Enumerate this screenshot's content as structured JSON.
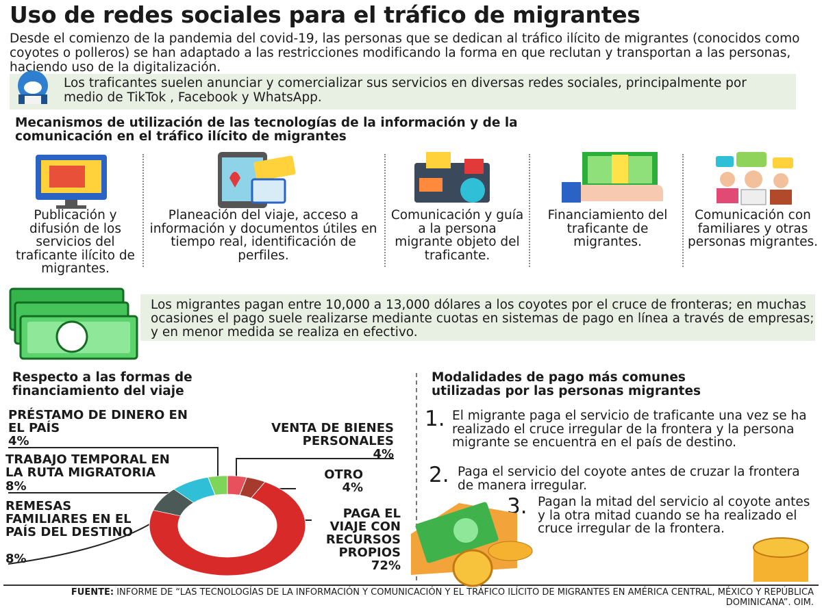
{
  "header": {
    "title": "Uso de redes sociales para el tráfico de migrantes"
  },
  "intro": "Desde el comienzo de la pandemia del covid-19, las personas que se dedican al tráfico ilícito de migrantes (conocidos como coyotes o polleros) se han adaptado a las restricciones modificando la forma en que reclutan y transportan a las personas, haciendo uso de la digitalización.",
  "callout": "Los traficantes suelen anunciar y comercializar sus servicios en diversas redes sociales, principalmente por medio de TikTok , Facebook y WhatsApp.",
  "mechanisms": {
    "title": "Mecanismos de utilización de las tecnologías de la información y de la comunicación en el tráfico ilícito de migrantes",
    "items": [
      "Publicación y difusión de los servicios del traficante ilícito de migrantes.",
      "Planeación del viaje, acceso a información y documentos útiles en tiempo real, identificación de perfiles.",
      "Comunicación y guía a la persona migrante objeto del traficante.",
      "Financiamiento del traficante de migrantes.",
      "Comunicación con familiares y otras personas migrantes."
    ]
  },
  "payment_note": "Los migrantes pagan entre 10,000 a 13,000 dólares a los coyotes por el cruce de fronteras; en muchas ocasiones el pago suele realizarse mediante cuotas en sistemas de pago en línea a través de empresas; y en menor medida se realiza en efectivo.",
  "chart_data": {
    "type": "pie",
    "donut": true,
    "title": "Respecto a las formas de financiamiento del viaje",
    "categories": [
      "PRÉSTAMO DE DINERO EN EL PAÍS",
      "VENTA DE BIENES PERSONALES",
      "OTRO",
      "PAGA EL VIAJE CON RECURSOS PROPIOS",
      "REMESAS FAMILIARES EN EL PAÍS DEL DESTINO",
      "TRABAJO TEMPORAL EN LA RUTA MIGRATORIA"
    ],
    "values": [
      4,
      4,
      4,
      72,
      8,
      8
    ],
    "value_labels": [
      "4%",
      "4%",
      "4%",
      "72%",
      "8%",
      "8%"
    ],
    "colors": [
      "#7fd45a",
      "#e8505b",
      "#a63a2c",
      "#d92a2a",
      "#4b5a56",
      "#2fc0d8"
    ]
  },
  "modalities": {
    "title": "Modalidades de pago más comunes utilizadas por las personas migrantes",
    "items": [
      {
        "number": "1.",
        "text": "El migrante paga el servicio de traficante una vez se ha realizado el cruce irregular de la frontera y la persona migrante se encuentra en el país de destino."
      },
      {
        "number": "2.",
        "text": "Paga el servicio del coyote antes de cruzar la frontera de manera irregular."
      },
      {
        "number": "3.",
        "text": "Pagan la mitad del servicio al coyote antes y la otra mitad cuando se ha realizado el cruce irregular de la frontera."
      }
    ]
  },
  "source": {
    "label": "FUENTE:",
    "text": "INFORME DE “LAS TECNOLOGÍAS DE LA INFORMACIÓN Y COMUNICACIÓN Y EL TRÁFICO ILÍCITO DE MIGRANTES EN AMÉRICA CENTRAL, MÉXICO Y REPÚBLICA DOMINICANA”. OIM."
  }
}
